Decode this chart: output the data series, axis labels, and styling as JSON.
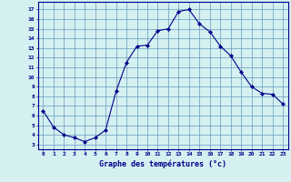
{
  "hours": [
    0,
    1,
    2,
    3,
    4,
    5,
    6,
    7,
    8,
    9,
    10,
    11,
    12,
    13,
    14,
    15,
    16,
    17,
    18,
    19,
    20,
    21,
    22,
    23
  ],
  "temps": [
    6.5,
    4.8,
    4.0,
    3.7,
    3.3,
    3.7,
    4.5,
    8.5,
    11.5,
    13.2,
    13.3,
    14.8,
    15.0,
    16.8,
    17.0,
    15.5,
    14.7,
    13.2,
    12.2,
    10.5,
    9.0,
    8.3,
    8.2,
    7.2
  ],
  "line_color": "#00008B",
  "marker_color": "#00008B",
  "bg_color": "#d4f0f0",
  "grid_color": "#6699bb",
  "xlabel": "Graphe des températures (°c)",
  "ylabel_ticks": [
    3,
    4,
    5,
    6,
    7,
    8,
    9,
    10,
    11,
    12,
    13,
    14,
    15,
    16,
    17
  ],
  "ylim": [
    2.5,
    17.8
  ],
  "xlim": [
    -0.5,
    23.5
  ]
}
